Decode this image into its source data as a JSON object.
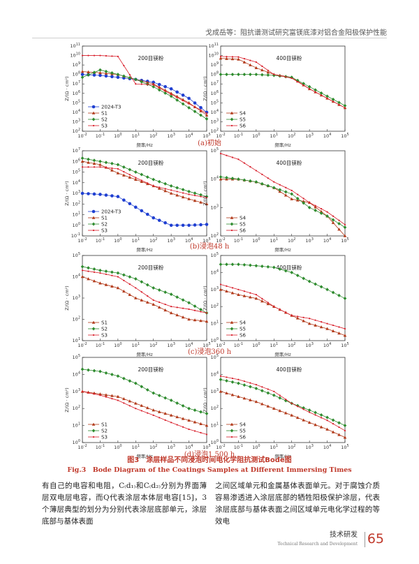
{
  "header": {
    "running_title": "戈成岳等：阻抗谱测试研究富镁底漆对铝合金阳极保护性能"
  },
  "figure": {
    "caption_cn": "图3　涂层样品不同浸泡时间电化学阻抗测试Bode图",
    "caption_en": "Fig.3　Bode Diagram of the Coatings Samples at Different Immersing Times",
    "xlabel": "频率/Hz",
    "ylabel": "Z/(Ω · cm²)",
    "panels": [
      {
        "sub": "(a)初始",
        "left_title": "200目镁粉",
        "right_title": "400目镁粉",
        "left_series": [
          "2024-T3",
          "S1",
          "S2",
          "S3"
        ],
        "right_series": [
          "S4",
          "S5",
          "S6"
        ]
      },
      {
        "sub": "(b)浸泡48 h",
        "left_title": "200目镁粉",
        "right_title": "400目镁粉",
        "left_series": [
          "2024-T3",
          "S1",
          "S2",
          "S3"
        ],
        "right_series": [
          "S4",
          "S5",
          "S6"
        ]
      },
      {
        "sub": "(c)浸泡360 h",
        "left_title": "200目镁粉",
        "right_title": "400目镁粉",
        "left_series": [
          "S1",
          "S2",
          "S3"
        ],
        "right_series": [
          "S4",
          "S5",
          "S6"
        ]
      },
      {
        "sub": "(d)浸泡1 500 h",
        "left_title": "200目镁粉",
        "right_title": "400目镁粉",
        "left_series": [
          "S1",
          "S2",
          "S3"
        ],
        "right_series": [
          "S4",
          "S5",
          "S6"
        ]
      }
    ]
  },
  "chart_data": [
    {
      "type": "line",
      "title": "200目镁粉",
      "xlabel": "频率/Hz",
      "ylabel": "Z/(Ω · cm²)",
      "log_x": true,
      "log_y": true,
      "xlim": [
        0.01,
        100000
      ],
      "ylim": [
        100,
        100000000000.0
      ],
      "x": [
        0.01,
        0.1,
        1,
        10,
        100,
        1000,
        10000,
        100000
      ],
      "series": [
        {
          "name": "2024-T3",
          "values": [
            100000000.0,
            80000000.0,
            50000000.0,
            30000000.0,
            15000000.0,
            3000000.0,
            300000.0,
            10000.0
          ]
        },
        {
          "name": "S1",
          "values": [
            200000000.0,
            150000000.0,
            100000000.0,
            30000000.0,
            10000000.0,
            1000000.0,
            100000.0,
            5000.0
          ]
        },
        {
          "name": "S2",
          "values": [
            50000000.0,
            300000000.0,
            100000000.0,
            30000000.0,
            5000000.0,
            500000.0,
            30000.0,
            2000.0
          ]
        },
        {
          "name": "S3",
          "values": [
            10000000000.0,
            10000000000.0,
            8000000000.0,
            10000000.0,
            8000000.0,
            800000.0,
            80000.0,
            8000.0
          ]
        }
      ]
    },
    {
      "type": "line",
      "title": "400目镁粉",
      "xlabel": "频率/Hz",
      "ylabel": "Z/(Ω · cm²)",
      "log_x": true,
      "log_y": true,
      "xlim": [
        0.01,
        100000
      ],
      "ylim": [
        100,
        100000000000.0
      ],
      "x": [
        0.01,
        0.1,
        1,
        10,
        100,
        1000,
        10000,
        100000
      ],
      "series": [
        {
          "name": "S4",
          "values": [
            5000000000.0,
            4000000000.0,
            500000000.0,
            100000000.0,
            50000000.0,
            3000000.0,
            300000.0,
            30000.0
          ]
        },
        {
          "name": "S5",
          "values": [
            100000000.0,
            100000000.0,
            100000000.0,
            80000000.0,
            50000000.0,
            5000000.0,
            500000.0,
            50000.0
          ]
        },
        {
          "name": "S6",
          "values": [
            8000000000.0,
            7000000000.0,
            2000000000.0,
            100000000.0,
            40000000.0,
            3000000.0,
            300000.0,
            30000.0
          ]
        }
      ]
    },
    {
      "type": "line",
      "title": "200目镁粉",
      "xlabel": "频率/Hz",
      "ylabel": "Z/(Ω · cm²)",
      "log_x": true,
      "log_y": true,
      "xlim": [
        0.01,
        100000
      ],
      "ylim": [
        0.1,
        10000000.0
      ],
      "x": [
        0.01,
        0.1,
        1,
        10,
        100,
        1000,
        10000,
        100000
      ],
      "series": [
        {
          "name": "2024-T3",
          "values": [
            1000,
            800,
            500,
            50,
            5,
            1,
            1,
            1.2
          ]
        },
        {
          "name": "S1",
          "values": [
            1000000.0,
            500000.0,
            80000.0,
            20000.0,
            5000.0,
            1000.0,
            300,
            100
          ]
        },
        {
          "name": "S2",
          "values": [
            2000000.0,
            1000000.0,
            500000.0,
            100000.0,
            20000.0,
            5000.0,
            1500.0,
            500
          ]
        },
        {
          "name": "S3",
          "values": [
            300000.0,
            300000.0,
            200000.0,
            30000.0,
            5000.0,
            2000.0,
            800,
            400
          ]
        }
      ]
    },
    {
      "type": "line",
      "title": "400目镁粉",
      "xlabel": "频率/Hz",
      "ylabel": "Z/(Ω · cm²)",
      "log_x": true,
      "log_y": true,
      "xlim": [
        0.01,
        100000
      ],
      "ylim": [
        100,
        100000
      ],
      "x": [
        0.01,
        0.1,
        1,
        10,
        100,
        1000,
        10000,
        100000
      ],
      "series": [
        {
          "name": "S4",
          "values": [
            10000,
            10000,
            8000,
            5000,
            2000,
            1500,
            500,
            100
          ]
        },
        {
          "name": "S5",
          "values": [
            12000,
            10000,
            8000,
            5000,
            3000,
            1000,
            500,
            200
          ]
        },
        {
          "name": "S6",
          "values": [
            80000,
            50000,
            20000,
            8000,
            4000,
            1500,
            700,
            250
          ]
        }
      ]
    },
    {
      "type": "line",
      "title": "200目镁粉",
      "xlabel": "频率/Hz",
      "ylabel": "Z/(Ω · cm²)",
      "log_x": true,
      "log_y": true,
      "xlim": [
        0.01,
        100000
      ],
      "ylim": [
        10,
        100000
      ],
      "x": [
        0.01,
        0.1,
        1,
        10,
        100,
        1000,
        10000,
        100000
      ],
      "series": [
        {
          "name": "S1",
          "values": [
            10000,
            5000,
            3000,
            1000,
            500,
            200,
            100,
            80
          ]
        },
        {
          "name": "S2",
          "values": [
            30000,
            20000,
            15000,
            8000,
            3000,
            1500,
            600,
            200
          ]
        },
        {
          "name": "S3",
          "values": [
            20000,
            15000,
            10000,
            3000,
            800,
            400,
            300,
            200
          ]
        }
      ]
    },
    {
      "type": "line",
      "title": "400目镁粉",
      "xlabel": "频率/Hz",
      "ylabel": "Z/(Ω · cm²)",
      "log_x": true,
      "log_y": true,
      "xlim": [
        0.01,
        100000
      ],
      "ylim": [
        1,
        100000
      ],
      "x": [
        0.01,
        0.1,
        1,
        10,
        100,
        1000,
        10000,
        100000
      ],
      "series": [
        {
          "name": "S4",
          "values": [
            1000,
            500,
            300,
            100,
            30,
            10,
            5,
            2
          ]
        },
        {
          "name": "S5",
          "values": [
            30000,
            30000,
            25000,
            20000,
            10000,
            3000,
            1000,
            300
          ]
        },
        {
          "name": "S6",
          "values": [
            2000,
            1000,
            500,
            100,
            30,
            20,
            10,
            5
          ]
        }
      ]
    },
    {
      "type": "line",
      "title": "200目镁粉",
      "xlabel": "频率/Hz",
      "ylabel": "Z/(Ω · cm²)",
      "log_x": true,
      "log_y": true,
      "xlim": [
        0.01,
        100000
      ],
      "ylim": [
        1,
        100000
      ],
      "x": [
        0.01,
        0.1,
        1,
        10,
        100,
        1000,
        10000,
        100000
      ],
      "series": [
        {
          "name": "S1",
          "values": [
            1000,
            700,
            500,
            200,
            80,
            40,
            20,
            10
          ]
        },
        {
          "name": "S2",
          "values": [
            20000,
            15000,
            8000,
            3000,
            800,
            300,
            100,
            50
          ]
        },
        {
          "name": "S3",
          "values": [
            1000,
            600,
            300,
            100,
            40,
            15,
            6,
            3
          ]
        }
      ]
    },
    {
      "type": "line",
      "title": "400目镁粉",
      "xlabel": "频率/Hz",
      "ylabel": "Z/(Ω · cm²)",
      "log_x": true,
      "log_y": true,
      "xlim": [
        0.01,
        100000
      ],
      "ylim": [
        1,
        100000
      ],
      "x": [
        0.01,
        0.1,
        1,
        10,
        100,
        1000,
        10000,
        100000
      ],
      "series": [
        {
          "name": "S4",
          "values": [
            1000,
            500,
            250,
            100,
            40,
            15,
            6,
            2
          ]
        },
        {
          "name": "S5",
          "values": [
            5000,
            3000,
            1500,
            600,
            200,
            80,
            30,
            10
          ]
        },
        {
          "name": "S6",
          "values": [
            8000,
            5000,
            2500,
            1000,
            200,
            60,
            20,
            5
          ]
        }
      ]
    }
  ],
  "body": {
    "left": "有自己的电容和电阻，C₍d₁₎和C₍d₂₎分别为界面薄层双电层电容，而Q代表涂层本体层电容[15]，3个薄层典型的划分为分别代表涂层底部单元，涂层底部与基体表面",
    "right": "之间区域单元和金属基体表面单元。对于腐蚀介质容易渗透进入涂层底部的牺牲阳极保护涂层，代表涂层底部与基体表面之间区域单元电化学过程的等效电"
  },
  "footer": {
    "title": "技术研发",
    "english": "Technical Research and Development",
    "page": "65"
  },
  "colors": {
    "2024-T3": "#1f3fd1",
    "S1": "#b23a1a",
    "S4": "#b23a1a",
    "S2": "#2e8b2e",
    "S5": "#2e8b2e",
    "S3": "#d81e2a",
    "S6": "#d81e2a",
    "S1dots": "#5a1c1c"
  }
}
